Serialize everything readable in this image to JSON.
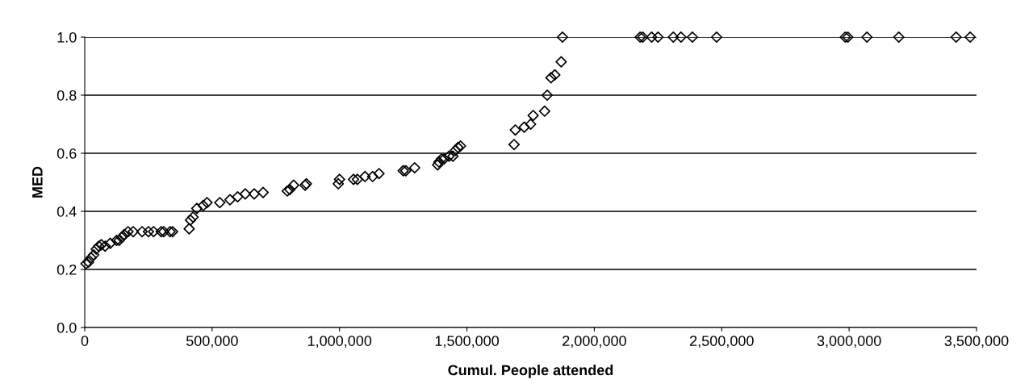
{
  "chart_data": {
    "type": "scatter",
    "xlabel": "Cumul. People attended",
    "ylabel": "MED",
    "x": [
      5000,
      15000,
      25000,
      35000,
      45000,
      55000,
      65000,
      80000,
      100000,
      125000,
      135000,
      145000,
      155000,
      170000,
      190000,
      225000,
      250000,
      270000,
      300000,
      310000,
      335000,
      345000,
      410000,
      415000,
      425000,
      440000,
      465000,
      480000,
      530000,
      570000,
      600000,
      630000,
      665000,
      700000,
      795000,
      805000,
      820000,
      865000,
      870000,
      995000,
      1000000,
      1055000,
      1070000,
      1100000,
      1130000,
      1155000,
      1250000,
      1260000,
      1295000,
      1385000,
      1390000,
      1400000,
      1410000,
      1430000,
      1445000,
      1455000,
      1465000,
      1475000,
      1685000,
      1690000,
      1725000,
      1750000,
      1760000,
      1805000,
      1815000,
      1830000,
      1845000,
      1870000,
      1875000,
      2180000,
      2190000,
      2225000,
      2250000,
      2310000,
      2340000,
      2385000,
      2480000,
      2985000,
      2995000,
      3070000,
      3195000,
      3420000,
      3475000
    ],
    "series": [
      {
        "color": "#000000",
        "values": [
          0.22,
          0.225,
          0.24,
          0.25,
          0.27,
          0.28,
          0.285,
          0.28,
          0.29,
          0.3,
          0.3,
          0.31,
          0.32,
          0.33,
          0.33,
          0.33,
          0.33,
          0.33,
          0.33,
          0.33,
          0.33,
          0.33,
          0.34,
          0.37,
          0.38,
          0.41,
          0.42,
          0.43,
          0.43,
          0.44,
          0.45,
          0.46,
          0.46,
          0.465,
          0.47,
          0.475,
          0.49,
          0.49,
          0.495,
          0.495,
          0.51,
          0.51,
          0.51,
          0.52,
          0.52,
          0.53,
          0.54,
          0.54,
          0.55,
          0.56,
          0.57,
          0.58,
          0.58,
          0.59,
          0.59,
          0.61,
          0.62,
          0.625,
          0.63,
          0.68,
          0.69,
          0.7,
          0.73,
          0.745,
          0.8,
          0.86,
          0.87,
          0.915,
          1.0,
          1.0,
          1.0,
          1.0,
          1.0,
          1.0,
          1.0,
          1.0,
          1.0,
          1.0,
          1.0,
          1.0,
          1.0,
          1.0,
          1.0
        ]
      }
    ],
    "marker": "diamond",
    "xlim": [
      0,
      3500000
    ],
    "xticks": [
      {
        "value": 0,
        "label": "0"
      },
      {
        "value": 500000,
        "label": "500,000"
      },
      {
        "value": 1000000,
        "label": "1,000,000"
      },
      {
        "value": 1500000,
        "label": "1,500,000"
      },
      {
        "value": 2000000,
        "label": "2,000,000"
      },
      {
        "value": 2500000,
        "label": "2,500,000"
      },
      {
        "value": 3000000,
        "label": "3,000,000"
      },
      {
        "value": 3500000,
        "label": "3,500,000"
      }
    ],
    "ylim": [
      0,
      1
    ],
    "yticks": [
      {
        "value": 0,
        "label": "0.0"
      },
      {
        "value": 0.2,
        "label": "0.2"
      },
      {
        "value": 0.4,
        "label": "0.4"
      },
      {
        "value": 0.6,
        "label": "0.6"
      },
      {
        "value": 0.8,
        "label": "0.8"
      },
      {
        "value": 1,
        "label": "1.0"
      }
    ],
    "grid": "y"
  }
}
